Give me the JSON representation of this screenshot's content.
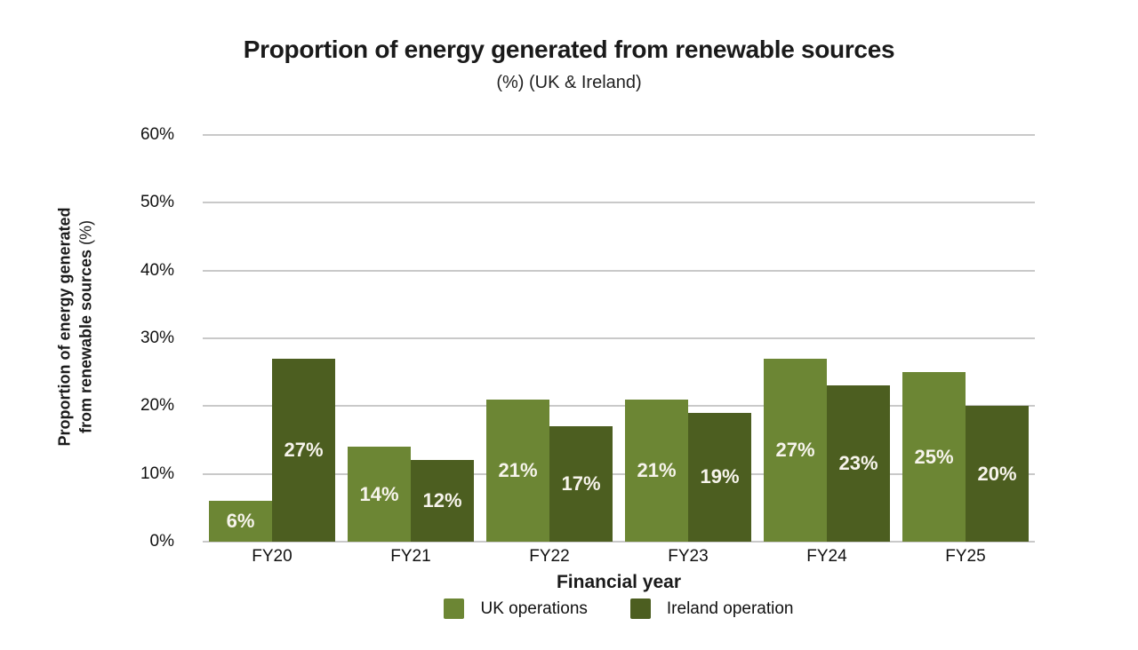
{
  "chart_data": {
    "type": "bar",
    "title": "Proportion of energy generated from renewable sources",
    "subtitle": "(%) (UK & Ireland)",
    "xlabel": "Financial year",
    "ylabel": "Proportion of energy generated from renewable sources (%)",
    "ylabel_lines": [
      "Proportion of energy generated",
      "from renewable sources"
    ],
    "ylabel_unit": "(%)",
    "categories": [
      "FY20",
      "FY21",
      "FY22",
      "FY23",
      "FY24",
      "FY25"
    ],
    "series": [
      {
        "name": "UK operations",
        "color": "#6c8634",
        "values": [
          6,
          14,
          21,
          21,
          27,
          25
        ]
      },
      {
        "name": "Ireland operation",
        "color": "#4c5e20",
        "values": [
          27,
          12,
          17,
          19,
          23,
          20
        ]
      }
    ],
    "value_suffix": "%",
    "ylim": [
      0,
      60
    ],
    "ytick_step": 10,
    "yticks": [
      "0%",
      "10%",
      "20%",
      "30%",
      "40%",
      "50%",
      "60%"
    ],
    "grid": true,
    "legend_position": "bottom",
    "colors": {
      "grid": "#c9c9c9",
      "axis_text": "#111111",
      "bar_label": "#f7f4ec",
      "title": "#1a1a1a"
    }
  }
}
